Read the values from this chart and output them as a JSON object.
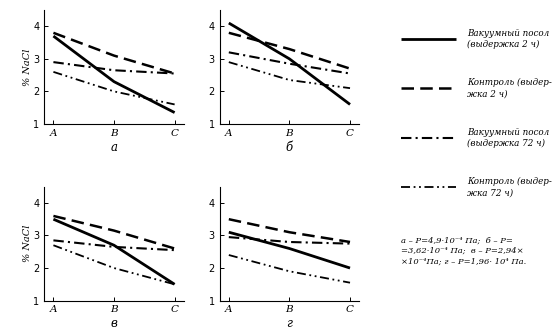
{
  "subplots": [
    {
      "label": "а",
      "lines": [
        {
          "y": [
            3.7,
            2.3,
            1.35
          ],
          "style": "solid",
          "lw": 2.0
        },
        {
          "y": [
            3.8,
            3.1,
            2.55
          ],
          "style": "dashed",
          "lw": 1.8
        },
        {
          "y": [
            2.9,
            2.65,
            2.55
          ],
          "style": "dashdot",
          "lw": 1.5
        },
        {
          "y": [
            2.6,
            2.0,
            1.6
          ],
          "style": "densely_dashdotdot",
          "lw": 1.3
        }
      ]
    },
    {
      "label": "б",
      "lines": [
        {
          "y": [
            4.1,
            3.0,
            1.6
          ],
          "style": "solid",
          "lw": 2.0
        },
        {
          "y": [
            3.8,
            3.3,
            2.7
          ],
          "style": "dashed",
          "lw": 1.8
        },
        {
          "y": [
            3.2,
            2.85,
            2.55
          ],
          "style": "dashdot",
          "lw": 1.5
        },
        {
          "y": [
            2.9,
            2.35,
            2.1
          ],
          "style": "densely_dashdotdot",
          "lw": 1.3
        }
      ]
    },
    {
      "label": "в",
      "lines": [
        {
          "y": [
            3.5,
            2.7,
            1.5
          ],
          "style": "solid",
          "lw": 2.0
        },
        {
          "y": [
            3.6,
            3.15,
            2.6
          ],
          "style": "dashed",
          "lw": 1.8
        },
        {
          "y": [
            2.85,
            2.65,
            2.55
          ],
          "style": "dashdot",
          "lw": 1.5
        },
        {
          "y": [
            2.7,
            2.0,
            1.5
          ],
          "style": "densely_dashdotdot",
          "lw": 1.3
        }
      ]
    },
    {
      "label": "г",
      "lines": [
        {
          "y": [
            3.1,
            2.6,
            2.0
          ],
          "style": "solid",
          "lw": 2.0
        },
        {
          "y": [
            3.5,
            3.1,
            2.8
          ],
          "style": "dashed",
          "lw": 1.8
        },
        {
          "y": [
            2.95,
            2.8,
            2.75
          ],
          "style": "dashdot",
          "lw": 1.5
        },
        {
          "y": [
            2.4,
            1.9,
            1.55
          ],
          "style": "densely_dashdotdot",
          "lw": 1.3
        }
      ]
    }
  ],
  "x_ticks": [
    "A",
    "B",
    "C"
  ],
  "ylim": [
    1.0,
    4.5
  ],
  "yticks": [
    1,
    2,
    3,
    4
  ],
  "ylabel_top": "% NaCl",
  "ylabel_bottom": "% NaCl",
  "legend_labels": [
    "Вакуумный посол\n(выдержка 2 ч)",
    "Контроль (выдер-\nжка 2 ч)",
    "Вакуумный посол\n(выдержка 72 ч)",
    "Контроль (выдер-\nжка 72 ч)"
  ],
  "annotation": "а – P=4,9·10⁻⁴ Па;  б – P=\n=3,62·10⁻⁴ Па;  в – P=2,94×\n×10⁻⁴Па; г – P=1,96· 10⁴ Па.",
  "background": "#ffffff",
  "line_color": "#000000"
}
